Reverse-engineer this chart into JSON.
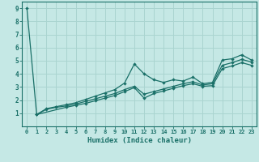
{
  "xlabel": "Humidex (Indice chaleur)",
  "xlim": [
    -0.5,
    23.5
  ],
  "ylim": [
    0,
    9.5
  ],
  "bg_color": "#c5e8e5",
  "grid_color": "#aad4d0",
  "line_color": "#1a7068",
  "xtick_labels": [
    "0",
    "1",
    "2",
    "3",
    "4",
    "5",
    "6",
    "7",
    "8",
    "9",
    "10",
    "11",
    "12",
    "13",
    "14",
    "15",
    "16",
    "17",
    "18",
    "19",
    "20",
    "21",
    "22",
    "23"
  ],
  "ytick_values": [
    1,
    2,
    3,
    4,
    5,
    6,
    7,
    8,
    9
  ],
  "line1_x": [
    0,
    1,
    2,
    3,
    4,
    5,
    6,
    7,
    8,
    9,
    10,
    11,
    12,
    13,
    14,
    15,
    16,
    17,
    18,
    19,
    20,
    21,
    22,
    23
  ],
  "line1_y": [
    9.0,
    0.9,
    1.35,
    1.5,
    1.65,
    1.8,
    2.05,
    2.3,
    2.55,
    2.8,
    3.3,
    4.75,
    4.0,
    3.55,
    3.35,
    3.55,
    3.45,
    3.75,
    3.25,
    3.35,
    5.05,
    5.15,
    5.45,
    5.05
  ],
  "line2_x": [
    1,
    2,
    3,
    4,
    5,
    6,
    7,
    8,
    9,
    10,
    11,
    12,
    13,
    14,
    15,
    16,
    17,
    18,
    19,
    20,
    21,
    22,
    23
  ],
  "line2_y": [
    0.9,
    1.3,
    1.45,
    1.55,
    1.7,
    1.9,
    2.1,
    2.3,
    2.5,
    2.8,
    3.05,
    2.45,
    2.65,
    2.85,
    3.05,
    3.25,
    3.4,
    3.15,
    3.25,
    4.65,
    4.85,
    5.1,
    4.9
  ],
  "line3_x": [
    1,
    4,
    5,
    6,
    7,
    8,
    9,
    10,
    11,
    12,
    13,
    14,
    15,
    16,
    17,
    18,
    19,
    20,
    21,
    22,
    23
  ],
  "line3_y": [
    0.9,
    1.45,
    1.6,
    1.75,
    1.95,
    2.15,
    2.35,
    2.65,
    2.95,
    2.15,
    2.5,
    2.7,
    2.9,
    3.1,
    3.25,
    3.05,
    3.1,
    4.4,
    4.6,
    4.85,
    4.65
  ]
}
